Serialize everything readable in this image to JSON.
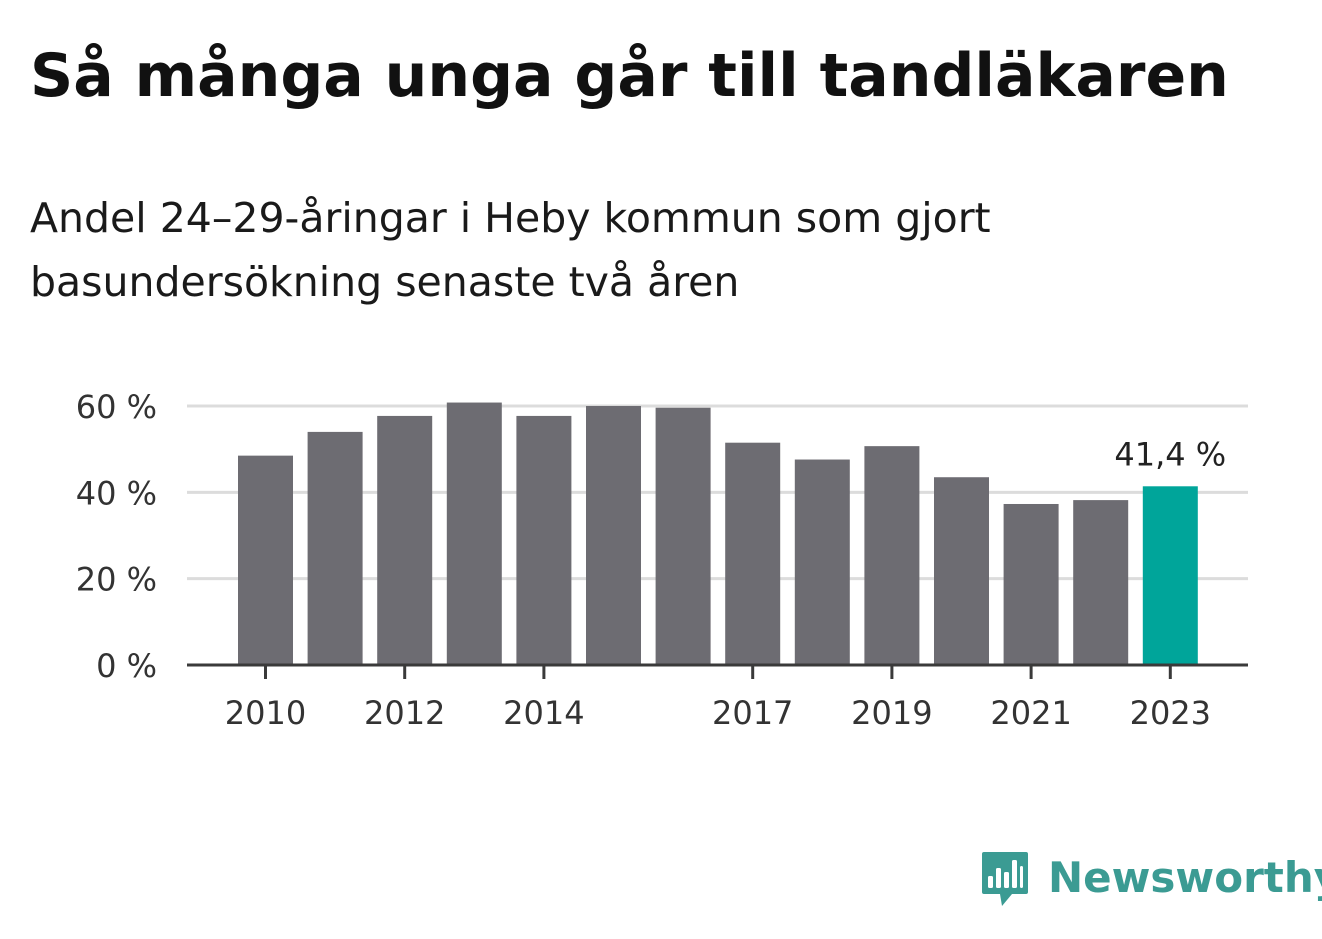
{
  "title": "Så många unga går till tandläkaren",
  "subtitle": "Andel 24–29-åringar i Heby kommun som gjort basundersökning senaste två åren",
  "colors": {
    "bar": "#6d6c72",
    "highlight": "#00a59a",
    "grid": "#dcdcdc",
    "axis": "#3a3a3a",
    "brand": "#3b9b93"
  },
  "chart_data": {
    "type": "bar",
    "categories": [
      "2010",
      "2011",
      "2012",
      "2013",
      "2014",
      "2015",
      "2016",
      "2017",
      "2018",
      "2019",
      "2020",
      "2021",
      "2022",
      "2023"
    ],
    "values": [
      48.5,
      54.0,
      57.7,
      60.8,
      57.7,
      60.0,
      59.6,
      51.5,
      47.6,
      50.7,
      43.5,
      37.3,
      38.2,
      41.4
    ],
    "highlight_category": "2023",
    "value_label": "41,4 %",
    "xticks": [
      "2010",
      "2012",
      "2014",
      "2017",
      "2019",
      "2021",
      "2023"
    ],
    "yticks": [
      0,
      20,
      40,
      60
    ],
    "ytick_labels": [
      "0 %",
      "20 %",
      "40 %",
      "60 %"
    ],
    "ylim": [
      0,
      60
    ],
    "grid": true,
    "legend": "none"
  },
  "brand": {
    "name": "Newsworthy",
    "icon": "newsworthy-logo-icon"
  }
}
